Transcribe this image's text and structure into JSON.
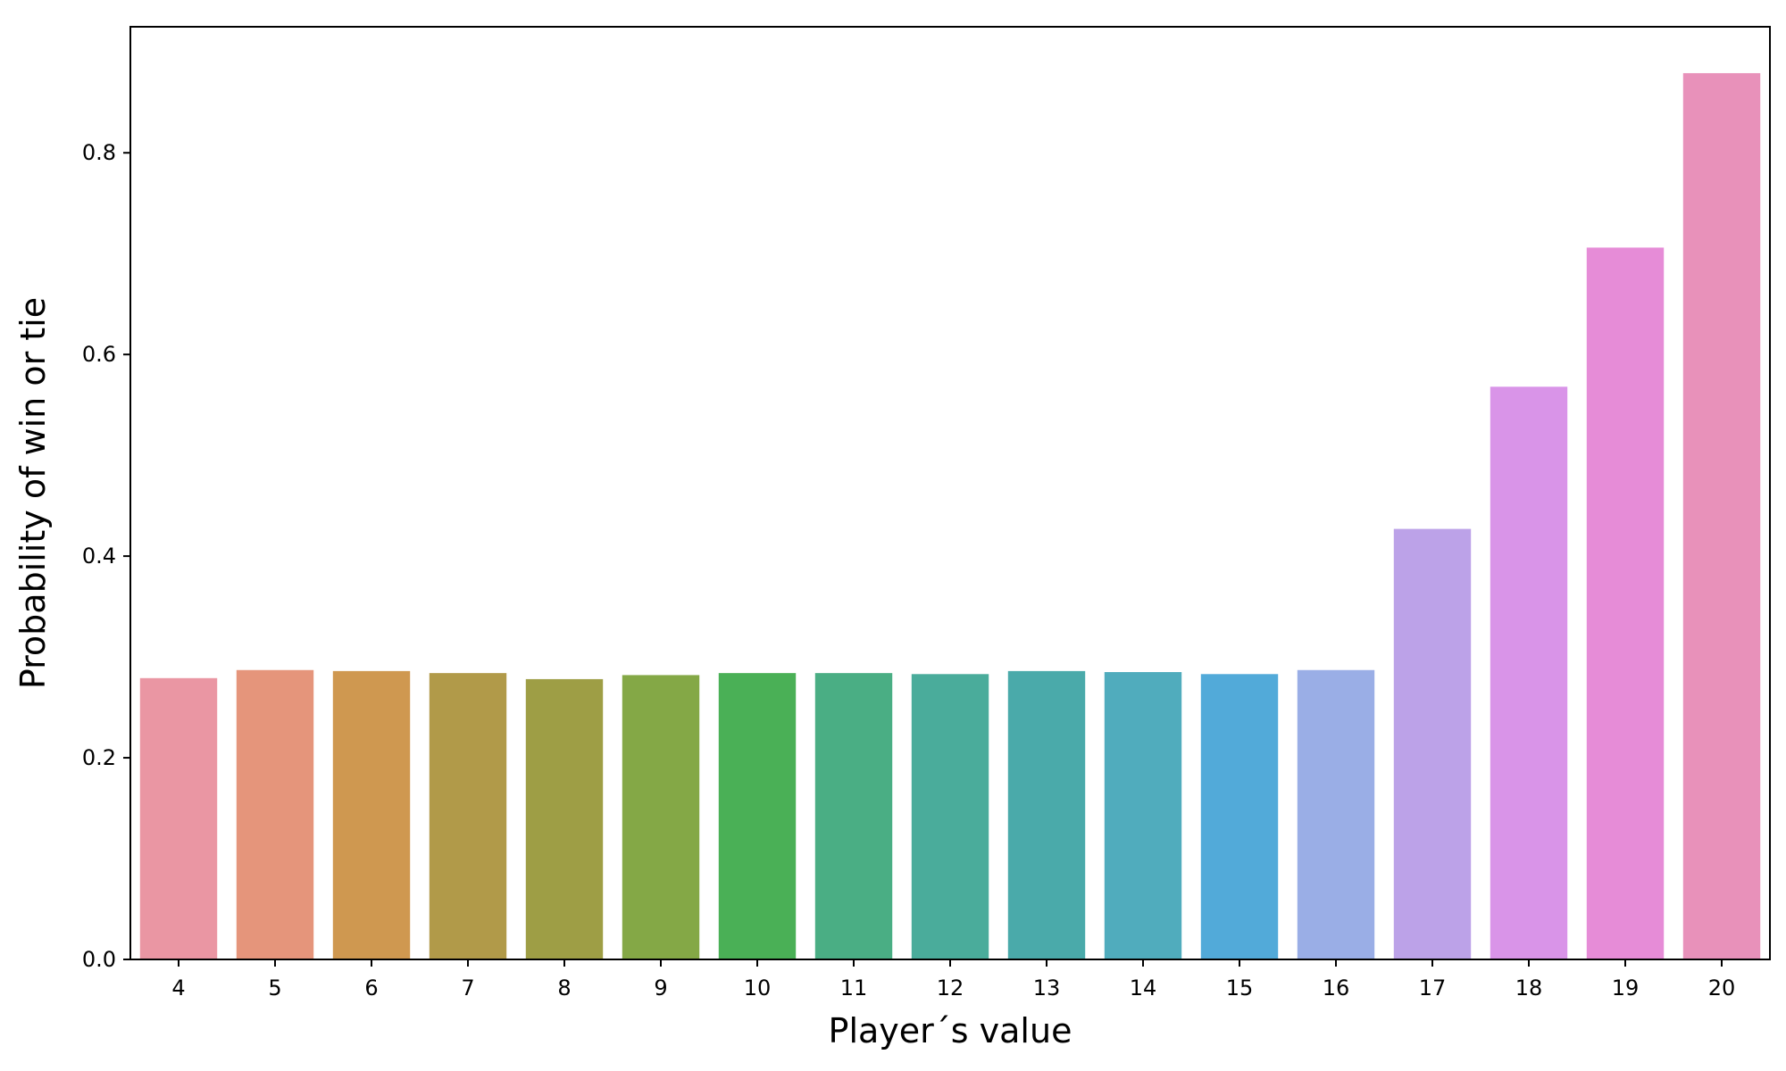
{
  "chart_data": {
    "type": "bar",
    "title": "",
    "xlabel": "Player´s value",
    "ylabel": "Probability of win or tie",
    "categories": [
      "4",
      "5",
      "6",
      "7",
      "8",
      "9",
      "10",
      "11",
      "12",
      "13",
      "14",
      "15",
      "16",
      "17",
      "18",
      "19",
      "20"
    ],
    "values": [
      0.279,
      0.287,
      0.286,
      0.284,
      0.278,
      0.282,
      0.284,
      0.284,
      0.283,
      0.286,
      0.285,
      0.283,
      0.287,
      0.427,
      0.568,
      0.706,
      0.879
    ],
    "colors": [
      "#ea96a3",
      "#e5957b",
      "#cf9850",
      "#b19a49",
      "#9e9e45",
      "#84a846",
      "#4ab056",
      "#4aae84",
      "#4aac9b",
      "#4aaaaa",
      "#50acbd",
      "#52aad9",
      "#9aaee6",
      "#bca2e8",
      "#d994e8",
      "#e68cd7",
      "#e891ba"
    ],
    "ylim": [
      0,
      0.925
    ],
    "yticks": [
      "0.0",
      "0.2",
      "0.4",
      "0.6",
      "0.8"
    ],
    "ytick_values": [
      0.0,
      0.2,
      0.4,
      0.6,
      0.8
    ],
    "grid": false
  }
}
